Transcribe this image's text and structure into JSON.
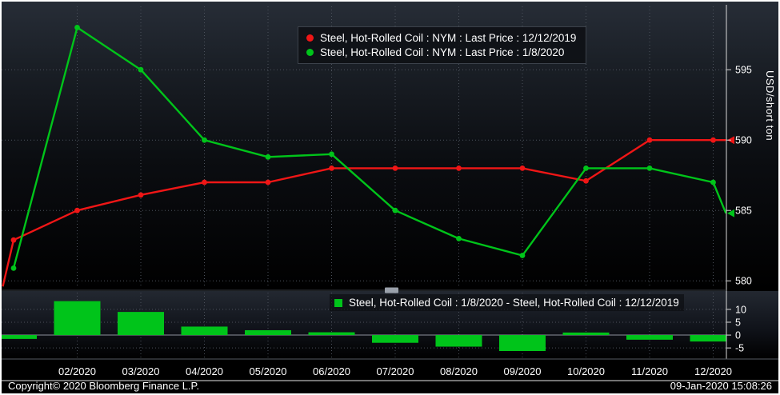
{
  "colors": {
    "red_series": "#f01616",
    "green_series": "#00c41a",
    "grid": "#4c525c",
    "axis_line": "#d9d9d9",
    "text": "#ffffff",
    "background_top": "#272d37",
    "background_bottom": "#000000"
  },
  "chart_data": [
    {
      "type": "line",
      "panel": "price",
      "ylabel": "USD/short ton",
      "yticks": [
        580,
        585,
        590,
        595
      ],
      "ylim": [
        579.5,
        599.5
      ],
      "x_tick_labels": [
        "02/2020",
        "03/2020",
        "04/2020",
        "05/2020",
        "06/2020",
        "07/2020",
        "08/2020",
        "09/2020",
        "10/2020",
        "11/2020",
        "12/2020"
      ],
      "x_tick_positions": [
        1,
        2,
        3,
        4,
        5,
        6,
        7,
        8,
        9,
        10,
        11
      ],
      "grid": "dotted",
      "legend_position": "top-center",
      "series": [
        {
          "name": "Steel, Hot-Rolled Coil : NYM : Last Price : 12/12/2019",
          "color": "#f01616",
          "x": [
            -0.17,
            0,
            1,
            2,
            3,
            4,
            5,
            6,
            7,
            8,
            9,
            10,
            11,
            11.2
          ],
          "values": [
            579.6,
            582.9,
            585.0,
            586.1,
            587.0,
            587.0,
            588.0,
            588.0,
            588.0,
            588.0,
            587.1,
            590.0,
            590.0,
            590.0
          ],
          "last_price": 590.0
        },
        {
          "name": "Steel, Hot-Rolled Coil : NYM : Last Price : 1/8/2020",
          "color": "#00c41a",
          "x": [
            0,
            1,
            2,
            3,
            4,
            5,
            6,
            7,
            8,
            9,
            10,
            11,
            11.2
          ],
          "values": [
            580.9,
            598.0,
            595.0,
            590.0,
            588.8,
            589.0,
            585.0,
            583.0,
            581.8,
            588.0,
            588.0,
            587.0,
            584.8
          ],
          "last_price": 584.8
        }
      ]
    },
    {
      "type": "bar",
      "panel": "spread",
      "name": "Steel, Hot-Rolled Coil : 1/8/2020 - Steel, Hot-Rolled Coil : 12/12/2019",
      "color": "#00c41a",
      "yticks": [
        -5,
        0,
        5,
        10
      ],
      "ylim": [
        -9,
        16.5
      ],
      "x": [
        0,
        1,
        2,
        3,
        4,
        5,
        6,
        7,
        8,
        9,
        10,
        11
      ],
      "values": [
        -1.5,
        13.2,
        9.0,
        3.3,
        1.9,
        1.1,
        -3.0,
        -4.5,
        -6.2,
        1.0,
        -1.8,
        -2.5
      ]
    }
  ],
  "footer": {
    "copyright": "Copyright© 2020 Bloomberg Finance L.P.",
    "datetime": "09-Jan-2020 15:08:26"
  }
}
